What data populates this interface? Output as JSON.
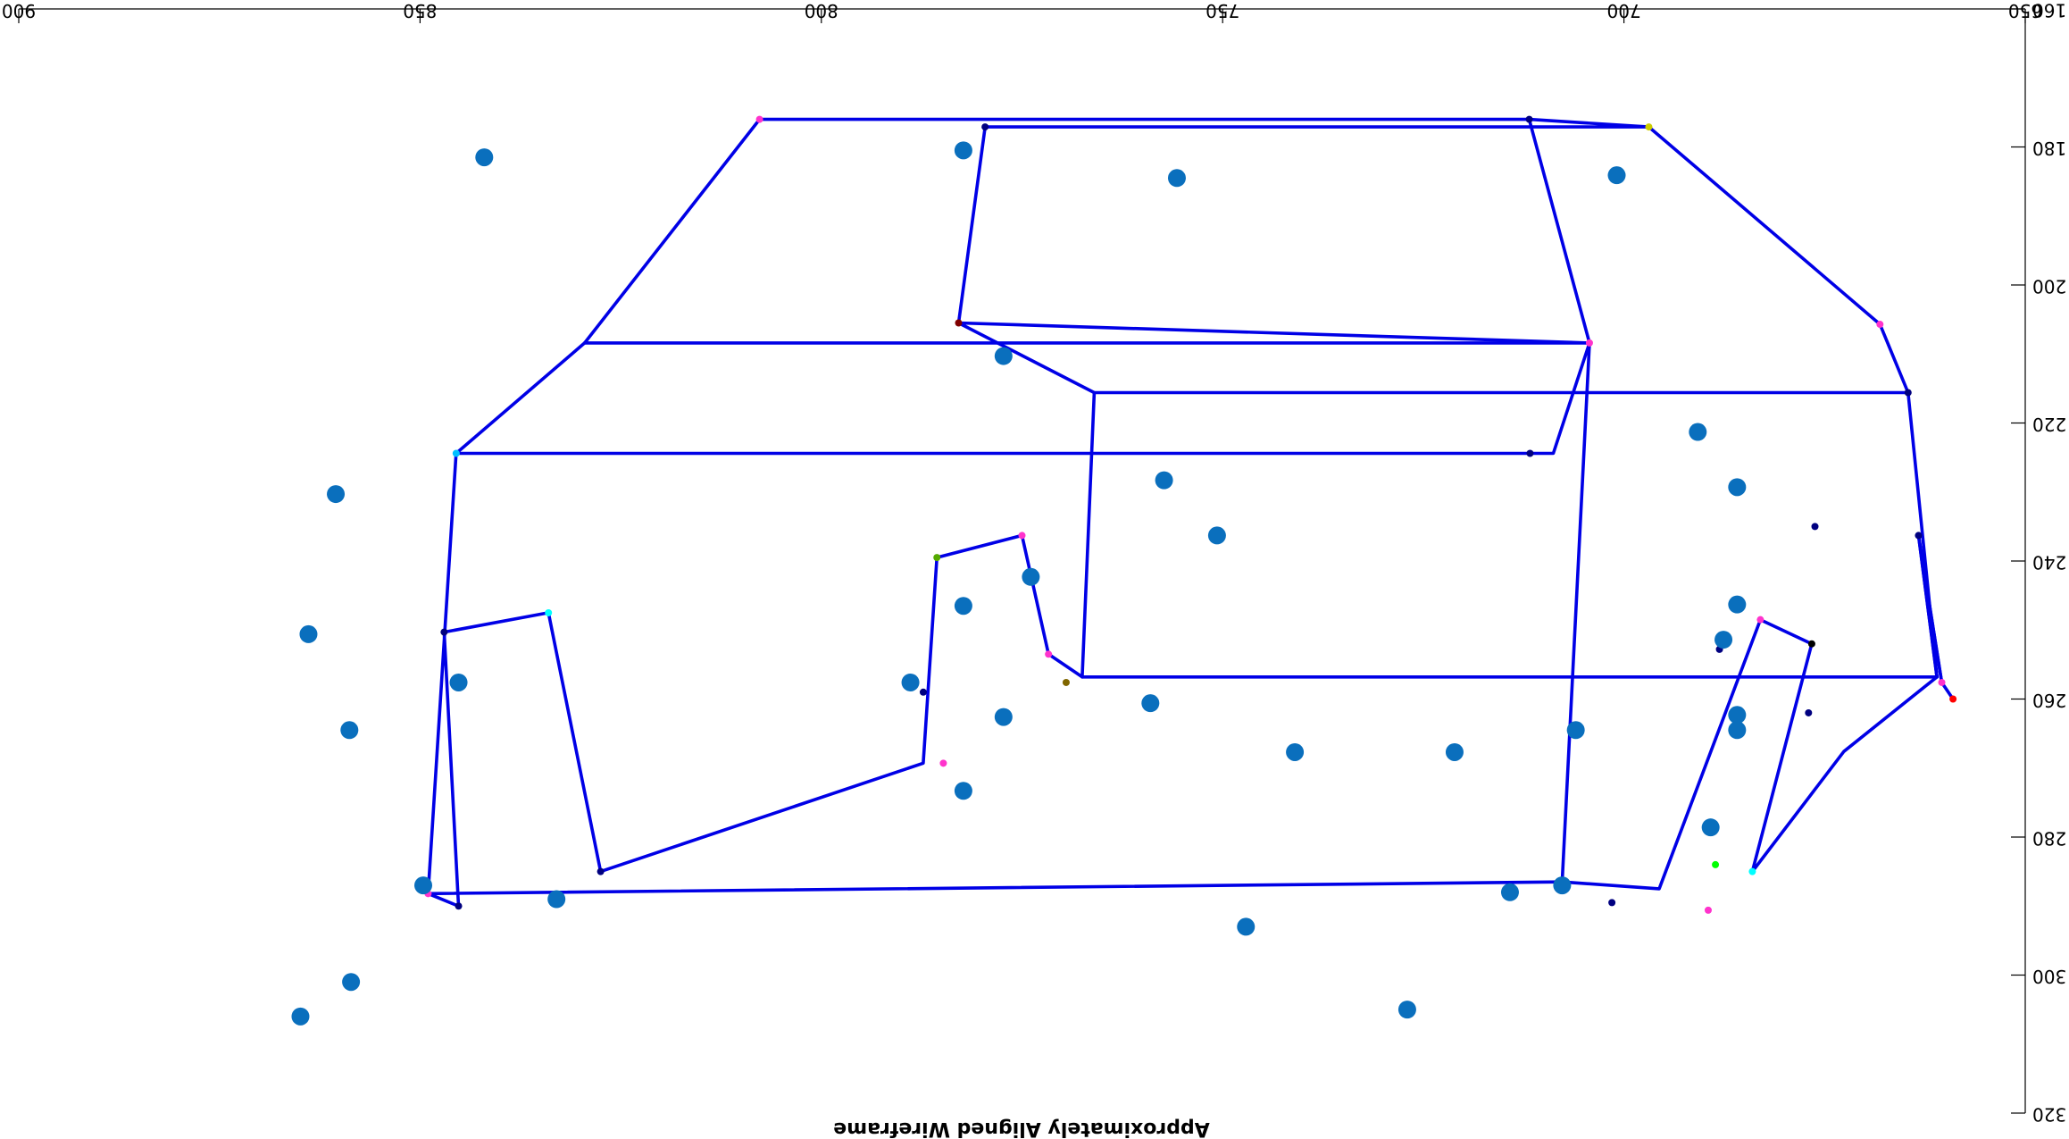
{
  "chart_data": {
    "type": "scatter",
    "title": "Approximately Aligned Wireframe",
    "xlabel": "",
    "ylabel": "",
    "xlim": [
      650,
      900
    ],
    "ylim": [
      160,
      320
    ],
    "x_inverted": true,
    "y_inverted": true,
    "image_rotated_180": true,
    "grid": false,
    "x_ticks": [
      650,
      700,
      750,
      800,
      850,
      900
    ],
    "y_ticks": [
      160,
      180,
      200,
      220,
      240,
      260,
      280,
      300,
      320
    ],
    "x_tick_labels": [
      "650",
      "700",
      "750",
      "800",
      "850",
      "900"
    ],
    "y_tick_labels": [
      "160",
      "180",
      "200",
      "220",
      "240",
      "260",
      "280",
      "300",
      "320"
    ],
    "colors": {
      "wireframe": "#0000e6",
      "points": "#0a6fbd"
    },
    "series": [
      {
        "kind": "points",
        "points": [
          [
            842.0,
            181.5
          ],
          [
            782.3,
            180.5
          ],
          [
            755.7,
            184.5
          ],
          [
            700.9,
            184.1
          ],
          [
            777.3,
            210.3
          ],
          [
            690.8,
            221.3
          ],
          [
            685.9,
            229.3
          ],
          [
            757.3,
            228.3
          ],
          [
            860.5,
            230.3
          ],
          [
            750.7,
            236.3
          ],
          [
            773.9,
            242.3
          ],
          [
            782.3,
            246.5
          ],
          [
            685.9,
            246.3
          ],
          [
            687.6,
            251.4
          ],
          [
            863.9,
            250.6
          ],
          [
            845.2,
            257.6
          ],
          [
            759.0,
            260.6
          ],
          [
            777.3,
            262.6
          ],
          [
            788.9,
            257.6
          ],
          [
            685.9,
            262.3
          ],
          [
            685.9,
            264.5
          ],
          [
            858.8,
            264.5
          ],
          [
            741.0,
            267.7
          ],
          [
            721.1,
            267.7
          ],
          [
            706.0,
            264.5
          ],
          [
            782.3,
            273.3
          ],
          [
            689.2,
            278.6
          ],
          [
            849.6,
            287.0
          ],
          [
            833.0,
            289.0
          ],
          [
            707.7,
            287.0
          ],
          [
            714.2,
            288.0
          ],
          [
            747.1,
            293.0
          ],
          [
            858.6,
            301.0
          ],
          [
            727.0,
            305.0
          ],
          [
            864.9,
            306.0
          ]
        ]
      },
      {
        "kind": "markers",
        "points": [
          [
            807.7,
            176.0
          ],
          [
            779.6,
            177.1
          ],
          [
            711.8,
            176.0
          ],
          [
            696.9,
            177.1
          ],
          [
            782.9,
            205.5
          ],
          [
            668.1,
            205.7
          ],
          [
            704.3,
            208.4
          ],
          [
            664.6,
            215.6
          ],
          [
            845.5,
            224.4
          ],
          [
            711.7,
            224.4
          ],
          [
            676.2,
            235.0
          ],
          [
            663.3,
            236.3
          ],
          [
            775.0,
            236.3
          ],
          [
            785.6,
            239.5
          ],
          [
            847.0,
            250.3
          ],
          [
            834.0,
            247.5
          ],
          [
            683.0,
            248.5
          ],
          [
            676.6,
            252.0
          ],
          [
            771.7,
            253.5
          ],
          [
            660.4,
            257.6
          ],
          [
            659.0,
            260.0
          ],
          [
            688.1,
            252.8
          ],
          [
            677.0,
            262.0
          ],
          [
            787.3,
            259.0
          ],
          [
            784.8,
            269.3
          ],
          [
            827.5,
            285.0
          ],
          [
            684.0,
            285.0
          ],
          [
            845.2,
            290.0
          ],
          [
            849.0,
            288.2
          ],
          [
            701.5,
            289.5
          ],
          [
            689.5,
            290.6
          ],
          [
            688.6,
            284.0
          ],
          [
            769.5,
            257.6
          ]
        ],
        "colors": [
          "#ff33cc",
          "#000080",
          "#000080",
          "#cccc00",
          "#800000",
          "#ff33cc",
          "#ff33cc",
          "#000080",
          "#00bfff",
          "#000080",
          "#000080",
          "#000080",
          "#ff33cc",
          "#55aa00",
          "#000080",
          "#00ffff",
          "#ff33cc",
          "#000000",
          "#ff33cc",
          "#ff33cc",
          "#ff0000",
          "#000080",
          "#000080",
          "#000080",
          "#ff33cc",
          "#000080",
          "#00ffff",
          "#000080",
          "#ff33cc",
          "#000080",
          "#ff33cc",
          "#00ff00",
          "#806600"
        ]
      },
      {
        "kind": "wireframe",
        "lines": [
          [
            [
              807.7,
              176.0
            ],
            [
              711.8,
              176.0
            ],
            [
              696.9,
              177.1
            ],
            [
              779.6,
              177.1
            ],
            [
              782.9,
              205.5
            ],
            [
              704.3,
              208.4
            ],
            [
              711.8,
              176.0
            ]
          ],
          [
            [
              807.7,
              176.0
            ],
            [
              829.5,
              208.4
            ],
            [
              704.3,
              208.4
            ],
            [
              707.7,
              286.5
            ],
            [
              695.6,
              287.5
            ],
            [
              683.0,
              248.5
            ],
            [
              676.6,
              252.0
            ],
            [
              684.0,
              285.0
            ],
            [
              672.6,
              267.6
            ],
            [
              661.0,
              256.8
            ],
            [
              663.3,
              236.3
            ],
            [
              660.4,
              257.6
            ],
            [
              659.0,
              260.0
            ]
          ],
          [
            [
              696.9,
              177.1
            ],
            [
              668.1,
              205.7
            ],
            [
              664.6,
              215.6
            ],
            [
              766.0,
              215.6
            ],
            [
              782.9,
              205.5
            ]
          ],
          [
            [
              829.5,
              208.4
            ],
            [
              845.5,
              224.4
            ],
            [
              708.8,
              224.4
            ],
            [
              704.3,
              208.4
            ]
          ],
          [
            [
              845.5,
              224.4
            ],
            [
              849.0,
              288.2
            ],
            [
              707.7,
              286.5
            ]
          ],
          [
            [
              849.0,
              288.2
            ],
            [
              845.2,
              290.0
            ],
            [
              847.0,
              250.3
            ],
            [
              834.0,
              247.5
            ],
            [
              827.5,
              285.0
            ],
            [
              787.3,
              269.3
            ],
            [
              785.6,
              239.5
            ],
            [
              775.0,
              236.3
            ],
            [
              771.7,
              253.5
            ],
            [
              767.5,
              256.8
            ],
            [
              766.0,
              215.6
            ]
          ],
          [
            [
              660.4,
              257.6
            ],
            [
              663.3,
              236.3
            ],
            [
              661.0,
              256.8
            ],
            [
              767.5,
              256.8
            ]
          ],
          [
            [
              664.6,
              215.6
            ],
            [
              661.0,
              256.8
            ]
          ]
        ]
      }
    ]
  }
}
